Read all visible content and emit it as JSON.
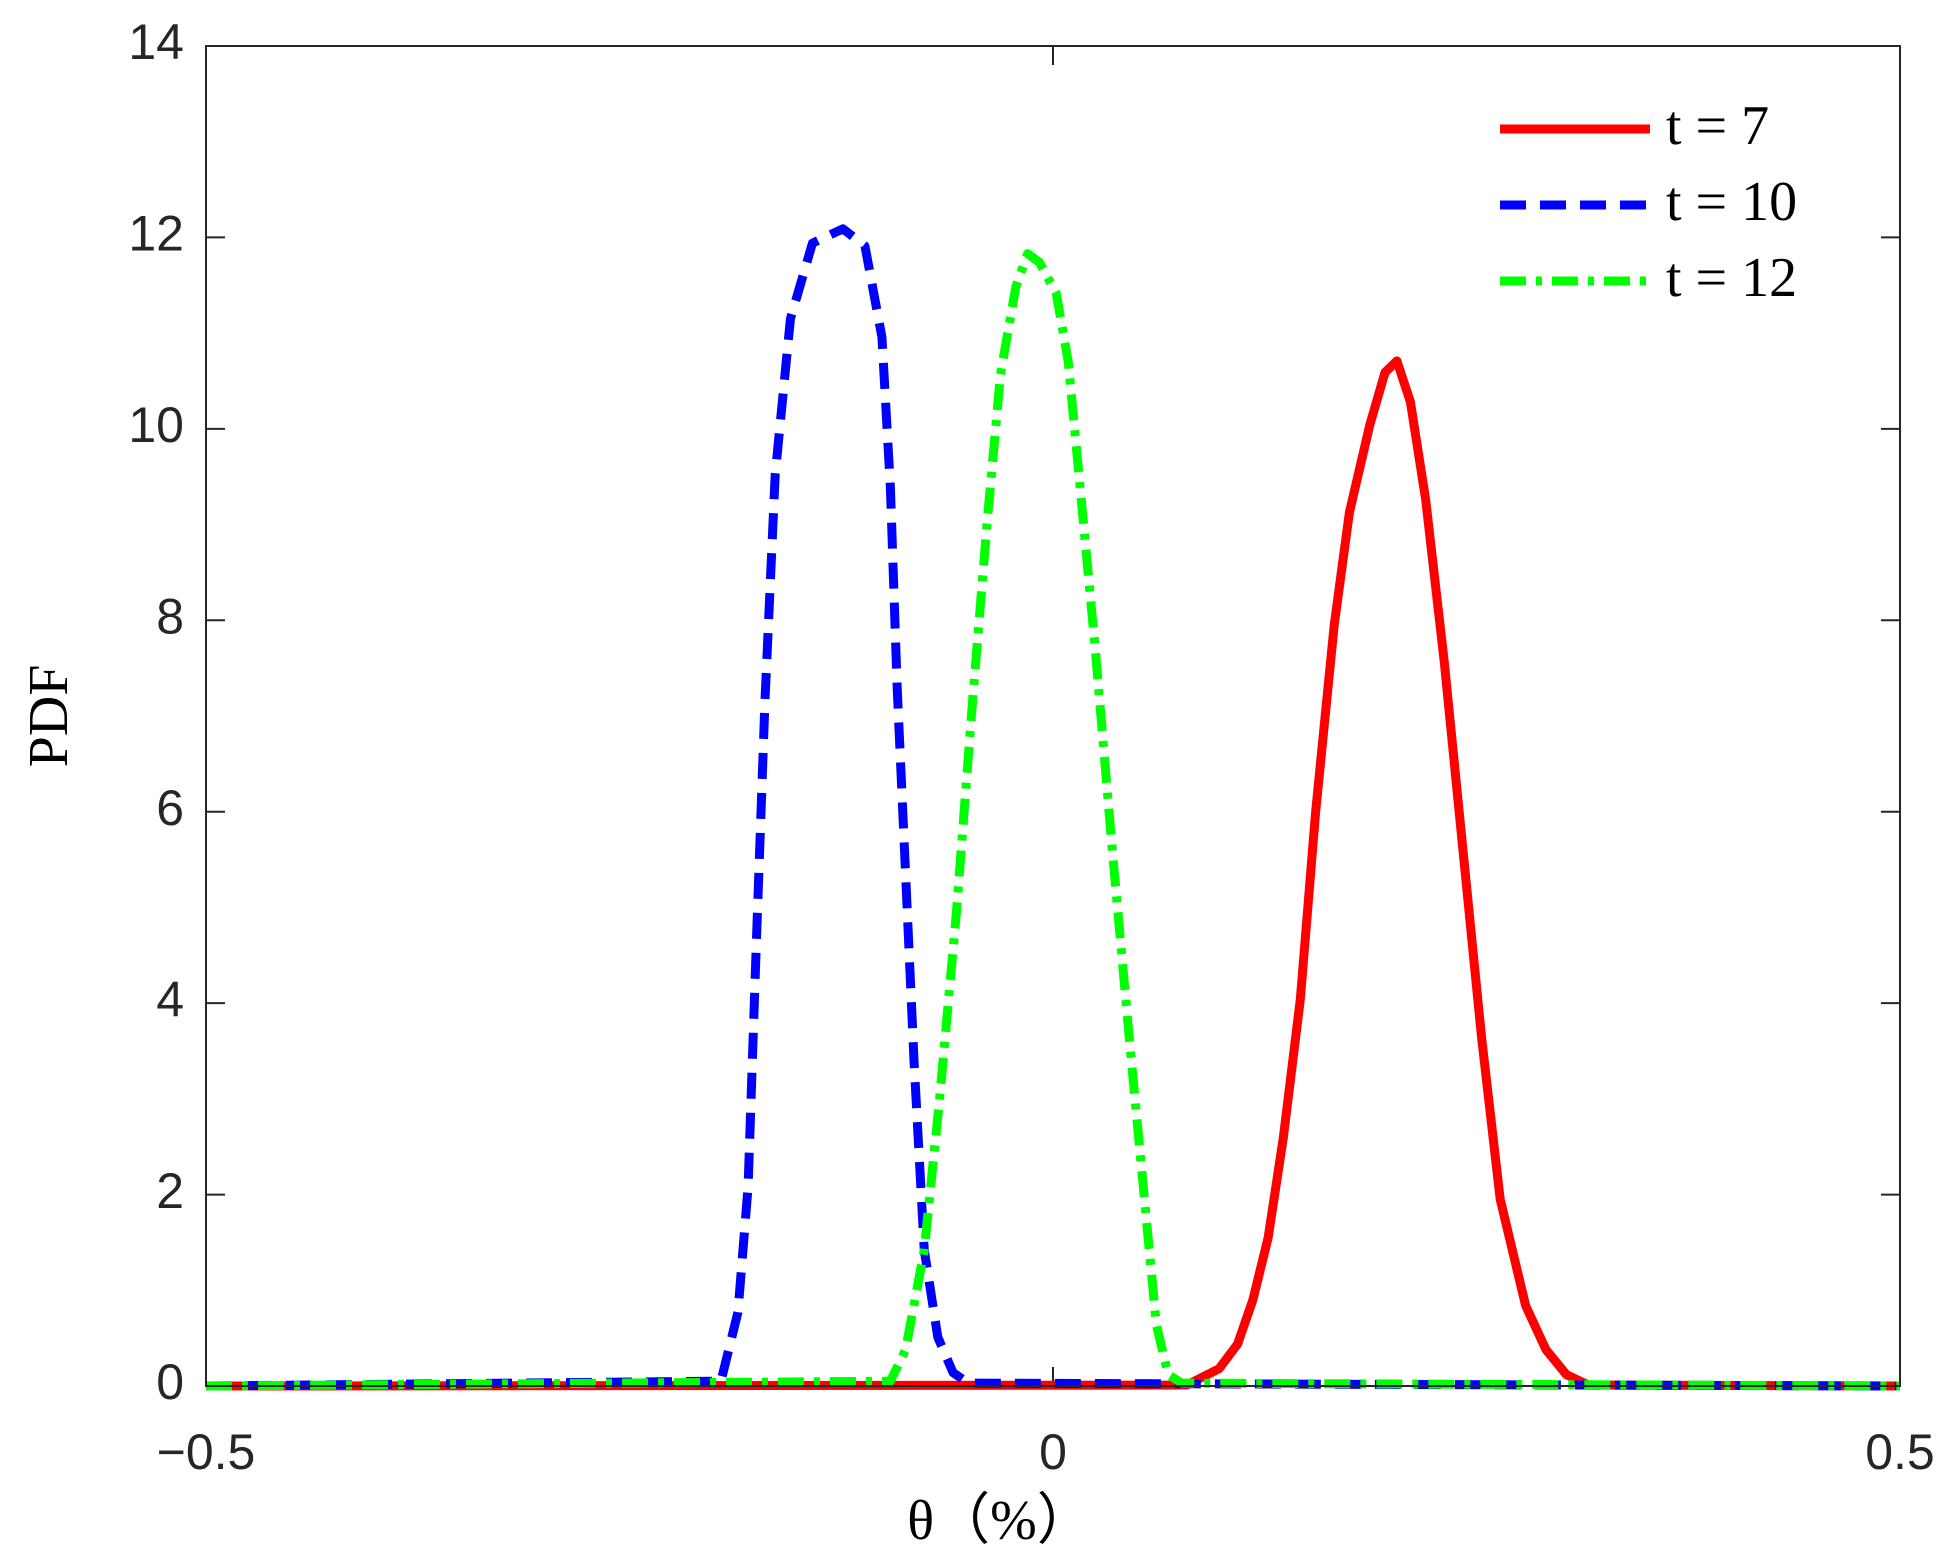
{
  "chart_data": {
    "type": "line",
    "xlabel": "θ（%）",
    "ylabel": "PDF",
    "xlim": [
      -0.5,
      0.5
    ],
    "xticks": [
      {
        "value": -0.5,
        "label": "−0.5"
      },
      0,
      0.5
    ],
    "ylim": [
      0,
      14
    ],
    "yticks": [
      0,
      2,
      4,
      6,
      8,
      10,
      12,
      14
    ],
    "grid": false,
    "legend": "upper right",
    "series": [
      {
        "name": "t = 7",
        "color": "#ff0000",
        "dash": "solid",
        "x": [
          -0.5,
          0.079,
          0.098,
          0.109,
          0.118,
          0.127,
          0.136,
          0.146,
          0.155,
          0.166,
          0.175,
          0.187,
          0.196,
          0.203,
          0.211,
          0.22,
          0.231,
          0.242,
          0.253,
          0.264,
          0.279,
          0.291,
          0.303,
          0.316,
          0.5
        ],
        "values": [
          0,
          0.01,
          0.18,
          0.44,
          0.9,
          1.55,
          2.6,
          4.04,
          5.99,
          7.95,
          9.13,
          10.04,
          10.59,
          10.71,
          10.28,
          9.26,
          7.56,
          5.6,
          3.64,
          1.95,
          0.84,
          0.38,
          0.12,
          0.01,
          0
        ]
      },
      {
        "name": "t = 10",
        "color": "#0000ff",
        "dash": "dashed",
        "x": [
          -0.5,
          -0.196,
          -0.186,
          -0.18,
          -0.175,
          -0.17,
          -0.164,
          -0.155,
          -0.142,
          -0.124,
          -0.111,
          -0.101,
          -0.096,
          -0.092,
          -0.087,
          -0.082,
          -0.076,
          -0.068,
          -0.059,
          -0.05,
          0.5
        ],
        "values": [
          0,
          0.05,
          0.77,
          2.08,
          4.69,
          7.17,
          9.52,
          11.15,
          11.94,
          12.09,
          11.91,
          10.96,
          9.39,
          7.3,
          5.34,
          3.38,
          1.42,
          0.51,
          0.14,
          0.03,
          0
        ]
      },
      {
        "name": "t = 12",
        "color": "#00ff00",
        "dash": "dashdot",
        "x": [
          -0.5,
          -0.096,
          -0.087,
          -0.076,
          -0.067,
          -0.057,
          -0.048,
          -0.039,
          -0.031,
          -0.022,
          -0.015,
          -0.008,
          0.002,
          0.009,
          0.016,
          0.025,
          0.035,
          0.045,
          0.054,
          0.061,
          0.068,
          0.076,
          0.5
        ],
        "values": [
          0,
          0.05,
          0.38,
          1.42,
          2.99,
          4.95,
          7.04,
          9.0,
          10.57,
          11.48,
          11.83,
          11.74,
          11.41,
          10.7,
          9.39,
          7.69,
          5.6,
          3.64,
          1.95,
          0.64,
          0.12,
          0.03,
          0
        ]
      }
    ]
  }
}
